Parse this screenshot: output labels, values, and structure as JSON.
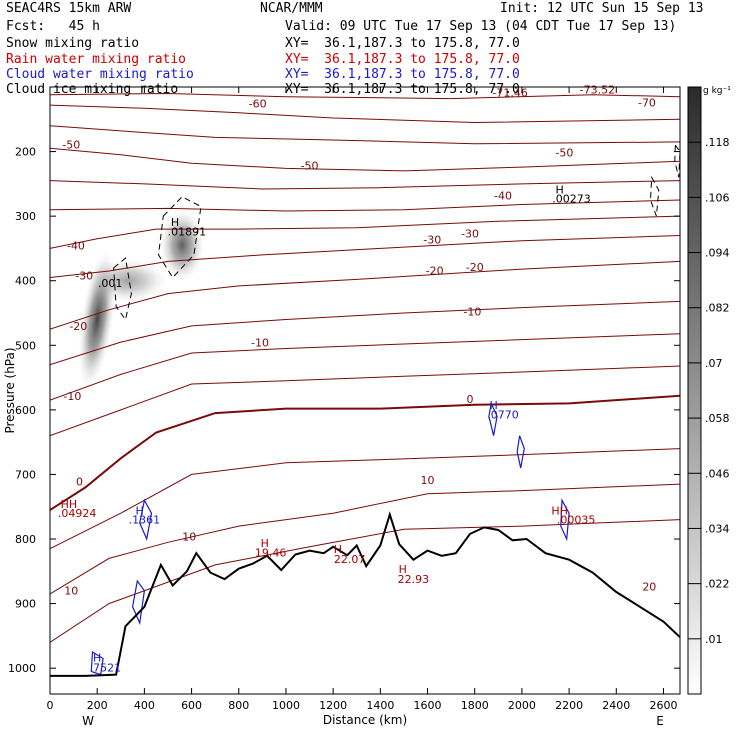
{
  "header": {
    "model": "SEAC4RS 15km ARW",
    "org": "NCAR/MMM",
    "init": "Init: 12 UTC Sun 15 Sep 13",
    "fcst": "Fcst:   45 h",
    "valid": "Valid: 09 UTC Tue 17 Sep 13 (04 CDT Tue 17 Sep 13)",
    "fields": [
      {
        "name": "Snow mixing ratio",
        "xy": "XY=  36.1,187.3 to 175.8, 77.0",
        "color": "#000000"
      },
      {
        "name": "Rain water mixing ratio",
        "xy": "XY=  36.1,187.3 to 175.8, 77.0",
        "color": "#cc0000"
      },
      {
        "name": "Cloud water mixing ratio",
        "xy": "XY=  36.1,187.3 to 175.8, 77.0",
        "color": "#1a1acc"
      },
      {
        "name": "Cloud ice mixing ratio",
        "xy": "XY=  36.1,187.3 to 175.8, 77.0",
        "color": "#000000"
      }
    ]
  },
  "chart_data": {
    "type": "cross-section",
    "xlabel": "Distance (km)",
    "ylabel": "Pressure (hPa)",
    "xlim": [
      0,
      2670
    ],
    "ylim": [
      100,
      1040
    ],
    "x_ticks": [
      0,
      200,
      400,
      600,
      800,
      1000,
      1200,
      1400,
      1600,
      1800,
      2000,
      2200,
      2400,
      2600
    ],
    "y_ticks": [
      200,
      300,
      400,
      500,
      600,
      700,
      800,
      900,
      1000
    ],
    "end_labels": {
      "left": "W",
      "right": "E"
    },
    "colorbar": {
      "unit": "g kg⁻¹",
      "levels": [
        0.01,
        0.022,
        0.034,
        0.046,
        0.058,
        0.07,
        0.082,
        0.094,
        0.106,
        0.118
      ],
      "labels": [
        ".01",
        ".022",
        ".034",
        ".046",
        ".058",
        ".07",
        ".082",
        ".094",
        ".106",
        ".118"
      ]
    },
    "temperature_labels": [
      {
        "text": "-71.46",
        "x": 1950,
        "p": 115
      },
      {
        "text": "-73.52",
        "x": 2320,
        "p": 110
      },
      {
        "text": "-70",
        "x": 2530,
        "p": 130
      },
      {
        "text": "-60",
        "x": 880,
        "p": 132
      },
      {
        "text": "-50",
        "x": 90,
        "p": 195
      },
      {
        "text": "-50",
        "x": 2180,
        "p": 208
      },
      {
        "text": "-50",
        "x": 1100,
        "p": 228
      },
      {
        "text": "-40",
        "x": 1920,
        "p": 274
      },
      {
        "text": "-40",
        "x": 110,
        "p": 352
      },
      {
        "text": "-30",
        "x": 1620,
        "p": 342
      },
      {
        "text": "-30",
        "x": 1780,
        "p": 333
      },
      {
        "text": "-30",
        "x": 145,
        "p": 398
      },
      {
        "text": "-20",
        "x": 1630,
        "p": 390
      },
      {
        "text": "-20",
        "x": 1800,
        "p": 385
      },
      {
        "text": "-20",
        "x": 120,
        "p": 476
      },
      {
        "text": "-10",
        "x": 1790,
        "p": 454
      },
      {
        "text": "-10",
        "x": 890,
        "p": 502
      },
      {
        "text": "-10",
        "x": 95,
        "p": 585
      },
      {
        "text": "0",
        "x": 1780,
        "p": 589
      },
      {
        "text": "0",
        "x": 125,
        "p": 717
      },
      {
        "text": "10",
        "x": 1600,
        "p": 715
      },
      {
        "text": "10",
        "x": 590,
        "p": 802
      },
      {
        "text": "10",
        "x": 90,
        "p": 886
      },
      {
        "text": "20",
        "x": 2540,
        "p": 880
      }
    ],
    "extrema": [
      {
        "text": "H",
        "x": 530,
        "p": 315,
        "color": "#000000"
      },
      {
        "text": ".01891",
        "x": 580,
        "p": 330,
        "color": "#000000"
      },
      {
        "text": ".001",
        "x": 255,
        "p": 410,
        "color": "#000000"
      },
      {
        "text": "H",
        "x": 2160,
        "p": 265,
        "color": "#000000"
      },
      {
        "text": ".00273",
        "x": 2210,
        "p": 279,
        "color": "#000000"
      },
      {
        "text": "H",
        "x": 1880,
        "p": 599,
        "color": "#1a1acc"
      },
      {
        "text": ".0770",
        "x": 1920,
        "p": 613,
        "color": "#1a1acc"
      },
      {
        "text": "H",
        "x": 380,
        "p": 762,
        "color": "#1a1acc"
      },
      {
        "text": ".1361",
        "x": 400,
        "p": 776,
        "color": "#1a1acc"
      },
      {
        "text": "H",
        "x": 200,
        "p": 990,
        "color": "#1a1acc"
      },
      {
        "text": ".7521",
        "x": 235,
        "p": 1005,
        "color": "#1a1acc"
      },
      {
        "text": "HH",
        "x": 80,
        "p": 752,
        "color": "#aa0000"
      },
      {
        "text": ".04924",
        "x": 115,
        "p": 766,
        "color": "#aa0000"
      },
      {
        "text": "HH",
        "x": 2160,
        "p": 762,
        "color": "#aa0000"
      },
      {
        "text": ".00035",
        "x": 2230,
        "p": 776,
        "color": "#aa0000"
      },
      {
        "text": "H",
        "x": 910,
        "p": 812,
        "color": "#aa0000"
      },
      {
        "text": "19.46",
        "x": 935,
        "p": 827,
        "color": "#aa0000"
      },
      {
        "text": "H",
        "x": 1220,
        "p": 822,
        "color": "#aa0000"
      },
      {
        "text": "22.07",
        "x": 1270,
        "p": 837,
        "color": "#aa0000"
      },
      {
        "text": "H",
        "x": 1495,
        "p": 853,
        "color": "#aa0000"
      },
      {
        "text": "22.93",
        "x": 1540,
        "p": 868,
        "color": "#aa0000"
      }
    ]
  }
}
